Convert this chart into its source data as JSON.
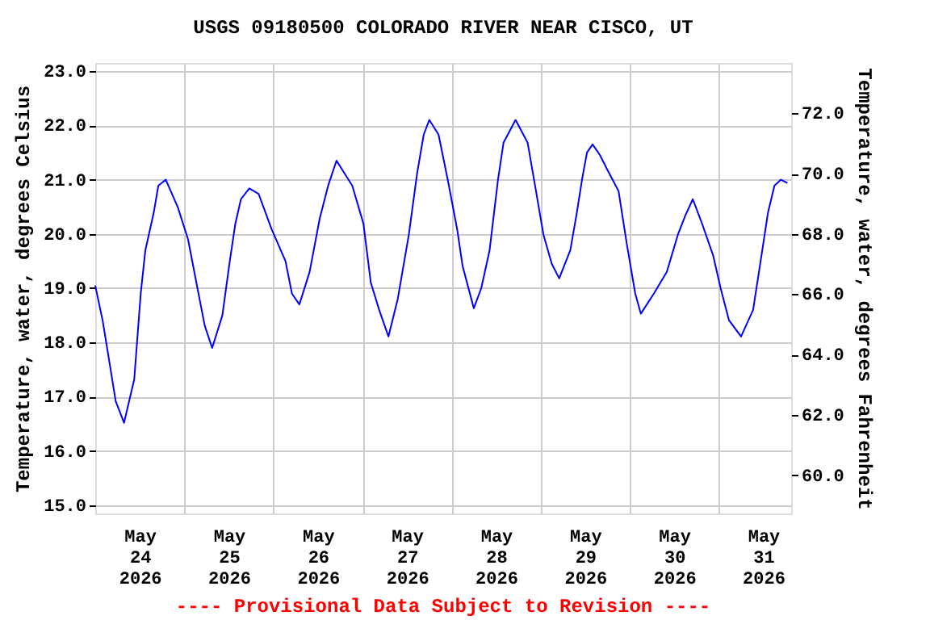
{
  "chart_data": {
    "type": "line",
    "title": "USGS 09180500 COLORADO RIVER NEAR CISCO, UT",
    "ylabel": "Temperature, water, degrees Celsius",
    "y2label": "Temperature, water, degrees Fahrenheit",
    "annotations": [
      "---- Provisional Data Subject to Revision ----"
    ],
    "x": [
      "2026-05-24T00:00",
      "2026-05-24T02:00",
      "2026-05-24T04:00",
      "2026-05-24T05:30",
      "2026-05-24T07:45",
      "2026-05-24T10:30",
      "2026-05-24T12:15",
      "2026-05-24T13:30",
      "2026-05-24T15:45",
      "2026-05-24T17:00",
      "2026-05-24T19:00",
      "2026-05-24T22:15",
      "2026-05-25T01:00",
      "2026-05-25T03:15",
      "2026-05-25T05:30",
      "2026-05-25T07:30",
      "2026-05-25T10:15",
      "2026-05-25T12:15",
      "2026-05-25T13:45",
      "2026-05-25T15:15",
      "2026-05-25T17:30",
      "2026-05-25T20:00",
      "2026-05-25T23:30",
      "2026-05-26T03:15",
      "2026-05-26T05:00",
      "2026-05-26T07:00",
      "2026-05-26T09:45",
      "2026-05-26T12:30",
      "2026-05-26T14:45",
      "2026-05-26T17:00",
      "2026-05-26T21:15",
      "2026-05-27T00:15",
      "2026-05-27T02:15",
      "2026-05-27T04:30",
      "2026-05-27T07:00",
      "2026-05-27T09:30",
      "2026-05-27T12:30",
      "2026-05-27T14:45",
      "2026-05-27T16:30",
      "2026-05-27T18:00",
      "2026-05-27T20:30",
      "2026-05-27T23:00",
      "2026-05-28T01:30",
      "2026-05-28T03:00",
      "2026-05-28T06:00",
      "2026-05-28T08:00",
      "2026-05-28T10:15",
      "2026-05-28T12:30",
      "2026-05-28T14:00",
      "2026-05-28T17:15",
      "2026-05-28T20:30",
      "2026-05-28T22:30",
      "2026-05-29T00:45",
      "2026-05-29T03:00",
      "2026-05-29T05:00",
      "2026-05-29T08:00",
      "2026-05-29T09:45",
      "2026-05-29T11:15",
      "2026-05-29T12:30",
      "2026-05-29T14:00",
      "2026-05-29T16:00",
      "2026-05-29T18:00",
      "2026-05-29T21:00",
      "2026-05-29T23:15",
      "2026-05-30T01:30",
      "2026-05-30T03:00",
      "2026-05-30T06:30",
      "2026-05-30T10:00",
      "2026-05-30T13:00",
      "2026-05-30T15:00",
      "2026-05-30T17:00",
      "2026-05-30T19:30",
      "2026-05-30T22:30",
      "2026-05-31T00:30",
      "2026-05-31T02:45",
      "2026-05-31T06:00",
      "2026-05-31T09:15",
      "2026-05-31T11:30",
      "2026-05-31T13:15",
      "2026-05-31T15:00",
      "2026-05-31T16:45",
      "2026-05-31T18:30"
    ],
    "series": [
      {
        "color": "#0000ff",
        "values": [
          19.05,
          18.4,
          17.56,
          16.92,
          16.52,
          17.32,
          18.9,
          19.7,
          20.39,
          20.89,
          21.0,
          20.49,
          19.9,
          19.1,
          18.31,
          17.9,
          18.5,
          19.5,
          20.19,
          20.64,
          20.84,
          20.74,
          20.09,
          19.5,
          18.9,
          18.7,
          19.3,
          20.29,
          20.89,
          21.35,
          20.89,
          20.19,
          19.1,
          18.6,
          18.11,
          18.8,
          19.99,
          21.13,
          21.83,
          22.1,
          21.83,
          20.99,
          20.09,
          19.4,
          18.63,
          19.0,
          19.7,
          20.99,
          21.68,
          22.1,
          21.68,
          20.89,
          19.99,
          19.45,
          19.18,
          19.7,
          20.39,
          21.04,
          21.5,
          21.65,
          21.45,
          21.18,
          20.79,
          19.8,
          18.9,
          18.53,
          18.9,
          19.3,
          19.99,
          20.34,
          20.64,
          20.19,
          19.6,
          19.0,
          18.41,
          18.11,
          18.6,
          19.6,
          20.39,
          20.89,
          21.0,
          20.94
        ]
      }
    ],
    "xlim": [
      "2026-05-24T00:00",
      "2026-05-31T19:30"
    ],
    "xticks": [
      {
        "value": "2026-05-24T12:00",
        "label": "May 24 2026"
      },
      {
        "value": "2026-05-25T00:00",
        "label": null
      },
      {
        "value": "2026-05-25T12:00",
        "label": "May 25 2026"
      },
      {
        "value": "2026-05-26T00:00",
        "label": null
      },
      {
        "value": "2026-05-26T12:00",
        "label": "May 26 2026"
      },
      {
        "value": "2026-05-27T00:00",
        "label": null
      },
      {
        "value": "2026-05-27T12:00",
        "label": "May 27 2026"
      },
      {
        "value": "2026-05-28T00:00",
        "label": null
      },
      {
        "value": "2026-05-28T12:00",
        "label": "May 28 2026"
      },
      {
        "value": "2026-05-29T00:00",
        "label": null
      },
      {
        "value": "2026-05-29T12:00",
        "label": "May 29 2026"
      },
      {
        "value": "2026-05-30T00:00",
        "label": null
      },
      {
        "value": "2026-05-30T12:00",
        "label": "May 30 2026"
      },
      {
        "value": "2026-05-31T00:00",
        "label": null
      },
      {
        "value": "2026-05-31T12:00",
        "label": "May 31 2026"
      }
    ],
    "ylim": [
      14.85,
      23.15
    ],
    "yticks": [
      {
        "value": 15,
        "label": "15.0"
      },
      {
        "value": 16,
        "label": "16.0"
      },
      {
        "value": 17,
        "label": "17.0"
      },
      {
        "value": 18,
        "label": "18.0"
      },
      {
        "value": 19,
        "label": "19.0"
      },
      {
        "value": 20,
        "label": "20.0"
      },
      {
        "value": 21,
        "label": "21.0"
      },
      {
        "value": 22,
        "label": "22.0"
      },
      {
        "value": 23,
        "label": "23.0"
      }
    ],
    "y2lim": [
      58.73,
      73.67
    ],
    "y2ticks": [
      {
        "value": 60,
        "label": "60.0"
      },
      {
        "value": 62,
        "label": "62.0"
      },
      {
        "value": 64,
        "label": "64.0"
      },
      {
        "value": 66,
        "label": "66.0"
      },
      {
        "value": 68,
        "label": "68.0"
      },
      {
        "value": 70,
        "label": "70.0"
      },
      {
        "value": 72,
        "label": "72.0"
      }
    ],
    "grid": true,
    "legend": false,
    "marker": "none",
    "line_style": "solid"
  }
}
